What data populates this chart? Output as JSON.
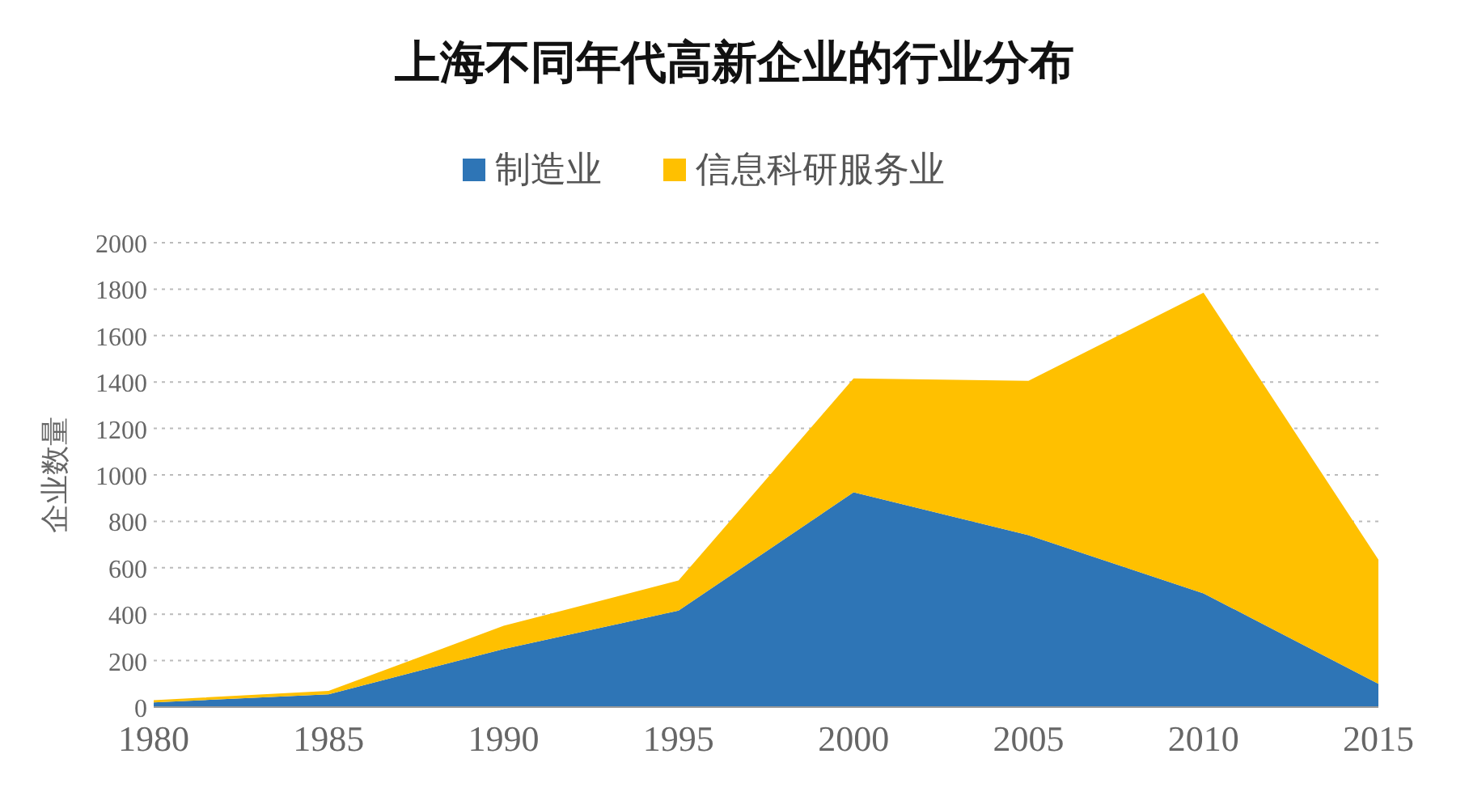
{
  "chart_data": {
    "type": "area",
    "title": "上海不同年代高新企业的行业分布",
    "ylabel": "企业数量",
    "stacked": true,
    "grid": "y",
    "legend": "top",
    "x": [
      1980,
      1985,
      1990,
      1995,
      2000,
      2005,
      2010,
      2015
    ],
    "xlim": [
      1980,
      2015
    ],
    "xticks": [
      1980,
      1985,
      1990,
      1995,
      2000,
      2005,
      2010,
      2015
    ],
    "ylim": [
      0,
      2000
    ],
    "yticks": [
      0,
      200,
      400,
      600,
      800,
      1000,
      1200,
      1400,
      1600,
      1800,
      2000
    ],
    "series": [
      {
        "name": "制造业",
        "color": "#2e75b6",
        "values": [
          20,
          55,
          250,
          415,
          925,
          740,
          490,
          100
        ]
      },
      {
        "name": "信息科研服务业",
        "color": "#ffc000",
        "values": [
          10,
          15,
          100,
          130,
          490,
          665,
          1295,
          535
        ]
      }
    ]
  }
}
